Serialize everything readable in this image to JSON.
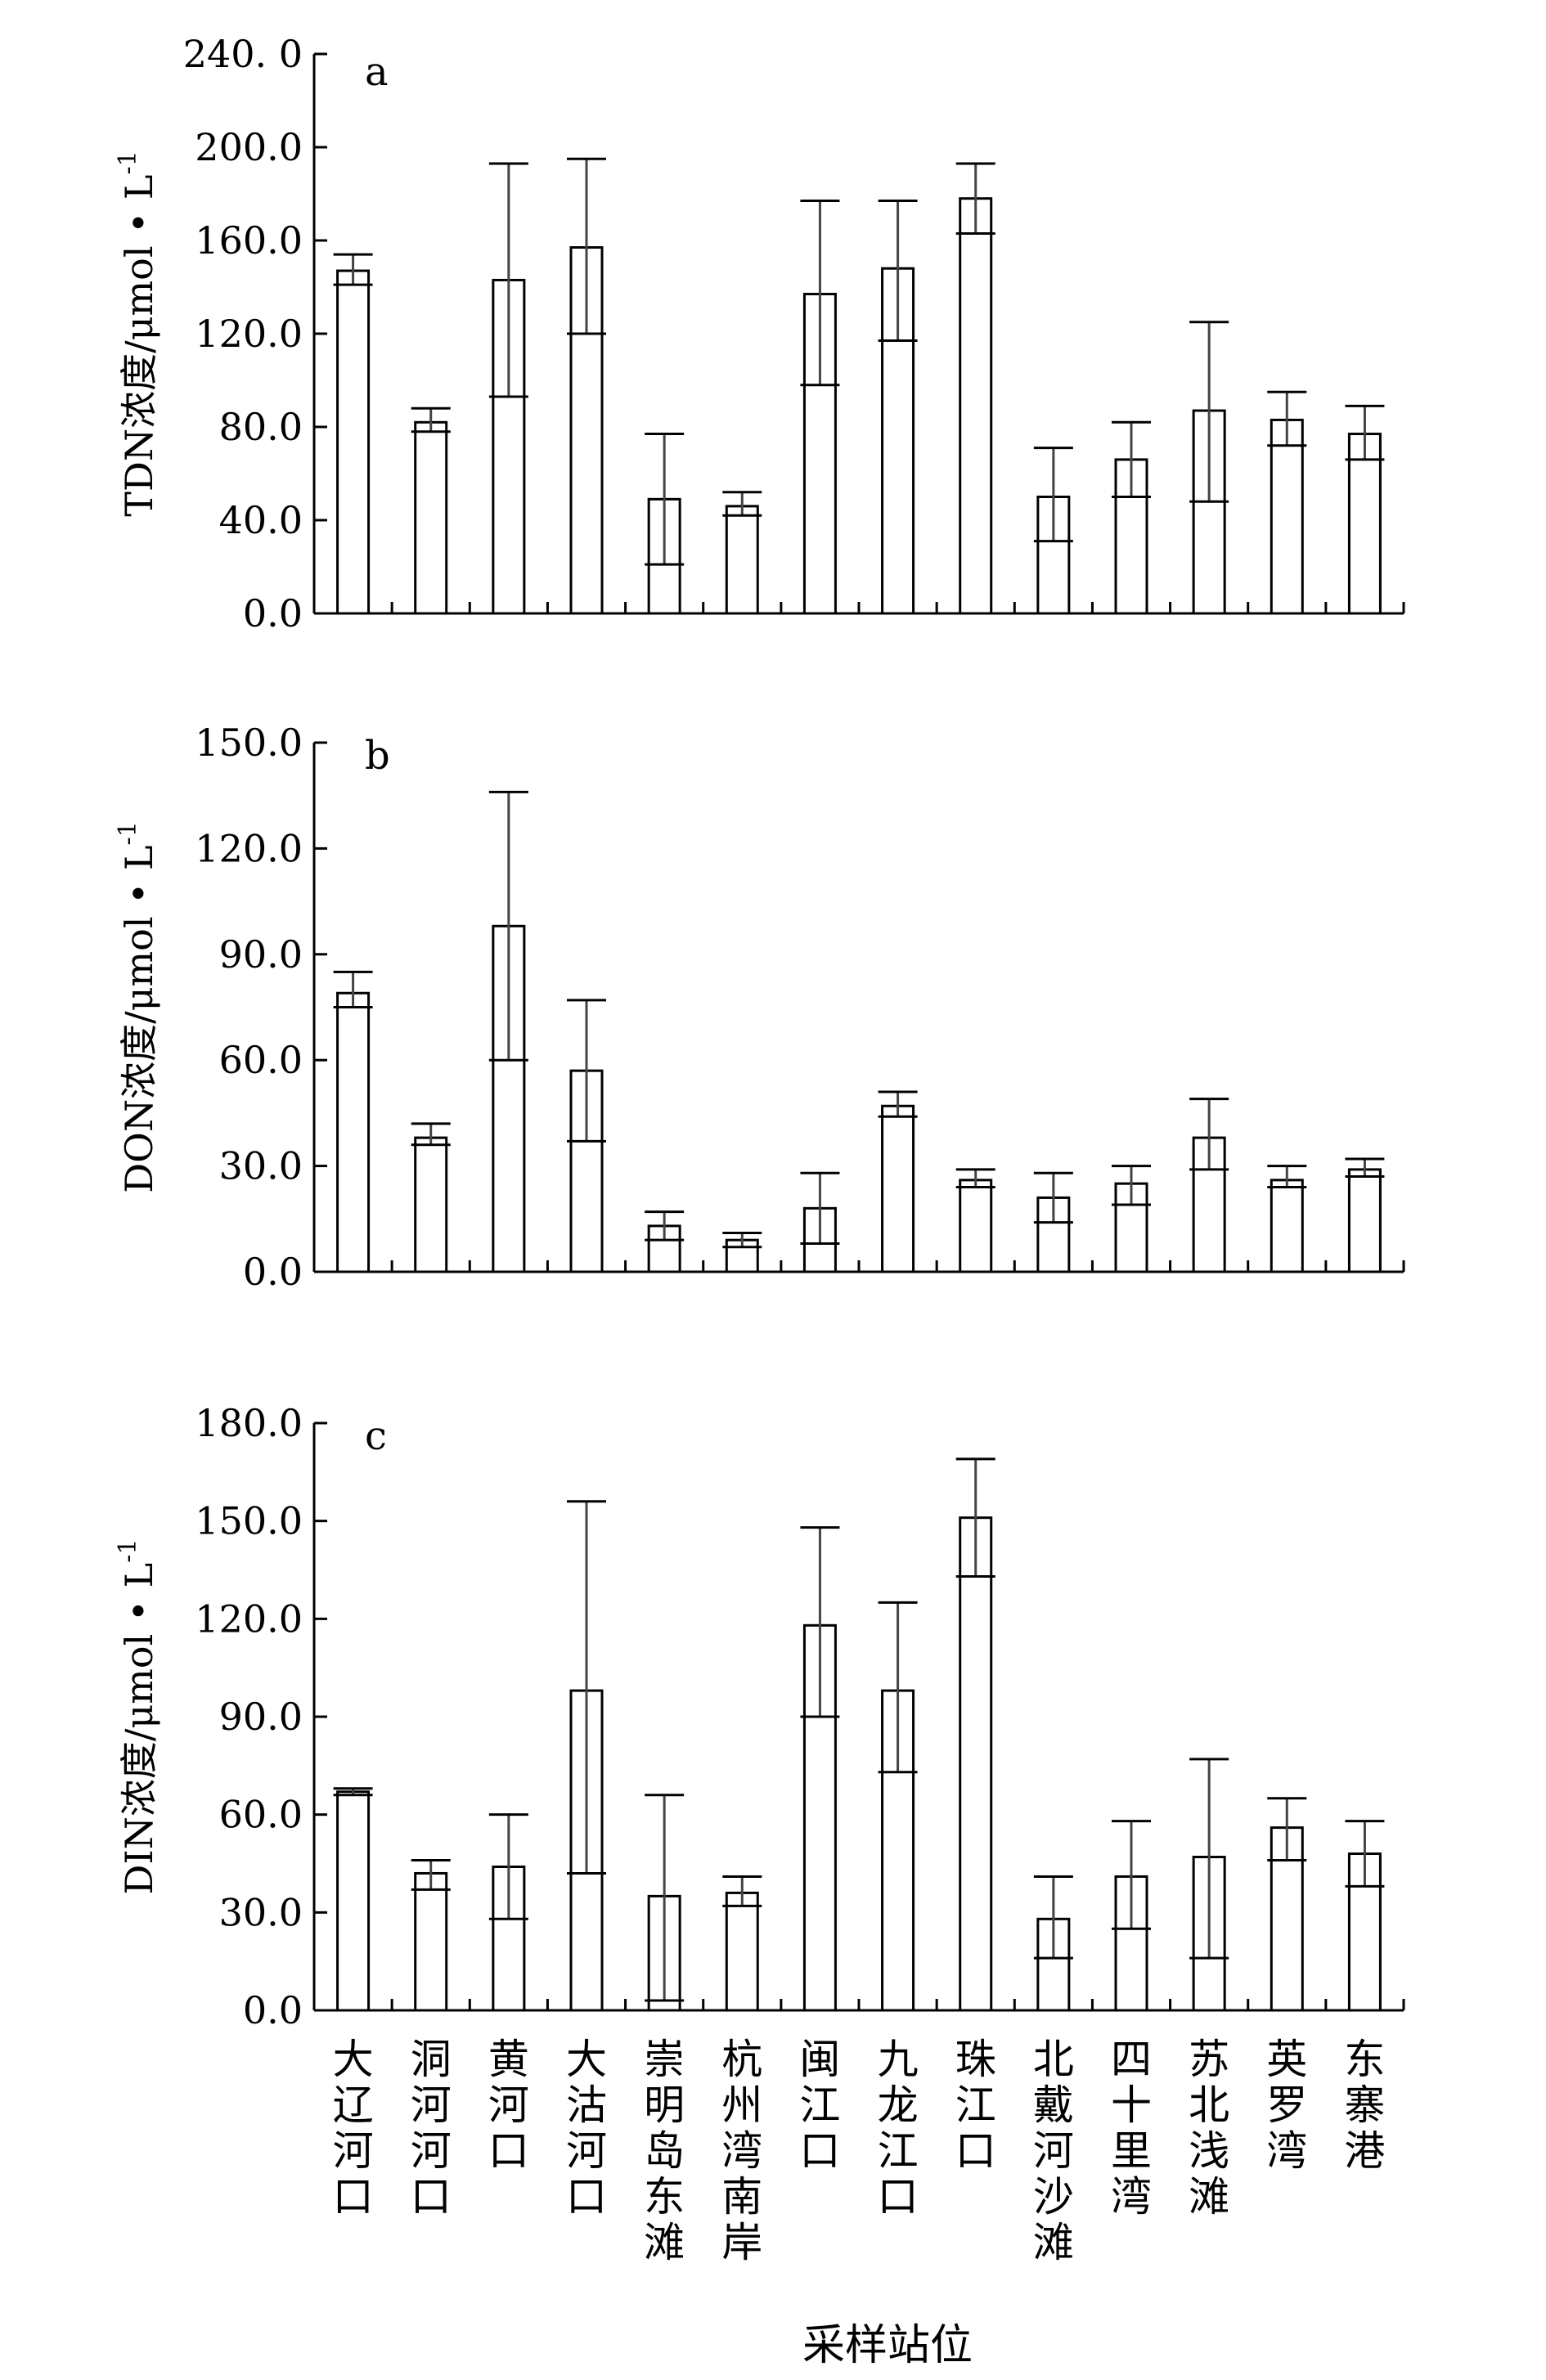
{
  "xlabel": "采样站位",
  "categories": [
    "大辽河口",
    "洞河河口",
    "黄河口",
    "大沽河口",
    "崇明岛东滩",
    "杭州湾南岸",
    "闽江口",
    "九龙江口",
    "珠江口",
    "北戴河沙滩",
    "四十里湾",
    "苏北浅滩",
    "英罗湾",
    "东寨港"
  ],
  "chart_data": [
    {
      "type": "bar",
      "panel": "a",
      "ylabel": "TDN浓度/μmol • L",
      "ylabel_sup": "-1",
      "ylim": [
        0,
        240
      ],
      "yticks": [
        "0.0",
        "40.0",
        "80.0",
        "120.0",
        "160.0",
        "200.0",
        "240. 0"
      ],
      "categories": [
        "大辽河口",
        "洞河河口",
        "黄河口",
        "大沽河口",
        "崇明岛东滩",
        "杭州湾南岸",
        "闽江口",
        "九龙江口",
        "珠江口",
        "北戴河沙滩",
        "四十里湾",
        "苏北浅滩",
        "英罗湾",
        "东寨港"
      ],
      "values": [
        147,
        82,
        143,
        157,
        49,
        46,
        137,
        148,
        178,
        50,
        66,
        87,
        83,
        77
      ],
      "err_low": [
        141,
        78,
        93,
        120,
        21,
        42,
        98,
        117,
        163,
        31,
        50,
        48,
        72,
        66
      ],
      "err_high": [
        154,
        88,
        193,
        195,
        77,
        52,
        177,
        177,
        193,
        71,
        82,
        125,
        95,
        89
      ]
    },
    {
      "type": "bar",
      "panel": "b",
      "ylabel": "DON浓度/μmol • L",
      "ylabel_sup": "-1",
      "ylim": [
        0,
        150
      ],
      "yticks": [
        "0.0",
        "30.0",
        "60.0",
        "90.0",
        "120.0",
        "150.0"
      ],
      "categories": [
        "大辽河口",
        "洞河河口",
        "黄河口",
        "大沽河口",
        "崇明岛东滩",
        "杭州湾南岸",
        "闽江口",
        "九龙江口",
        "珠江口",
        "北戴河沙滩",
        "四十里湾",
        "苏北浅滩",
        "英罗湾",
        "东寨港"
      ],
      "values": [
        79,
        38,
        98,
        57,
        13,
        9,
        18,
        47,
        26,
        21,
        25,
        38,
        26,
        29
      ],
      "err_low": [
        75,
        36,
        60,
        37,
        9,
        7,
        8,
        44,
        24,
        14,
        19,
        29,
        24,
        27
      ],
      "err_high": [
        85,
        42,
        136,
        77,
        17,
        11,
        28,
        51,
        29,
        28,
        30,
        49,
        30,
        32
      ]
    },
    {
      "type": "bar",
      "panel": "c",
      "ylabel": "DIN浓度/μmol • L",
      "ylabel_sup": "-1",
      "ylim": [
        0,
        180
      ],
      "yticks": [
        "0.0",
        "30.0",
        "60.0",
        "90.0",
        "120.0",
        "150.0",
        "180.0"
      ],
      "categories": [
        "大辽河口",
        "洞河河口",
        "黄河口",
        "大沽河口",
        "崇明岛东滩",
        "杭州湾南岸",
        "闽江口",
        "九龙江口",
        "珠江口",
        "北戴河沙滩",
        "四十里湾",
        "苏北浅滩",
        "英罗湾",
        "东寨港"
      ],
      "values": [
        67,
        42,
        44,
        98,
        35,
        36,
        118,
        98,
        151,
        28,
        41,
        47,
        56,
        48
      ],
      "err_low": [
        66,
        37,
        28,
        42,
        3,
        32,
        90,
        73,
        133,
        16,
        25,
        16,
        46,
        38
      ],
      "err_high": [
        68,
        46,
        60,
        156,
        66,
        41,
        148,
        125,
        169,
        41,
        58,
        77,
        65,
        58
      ]
    }
  ]
}
